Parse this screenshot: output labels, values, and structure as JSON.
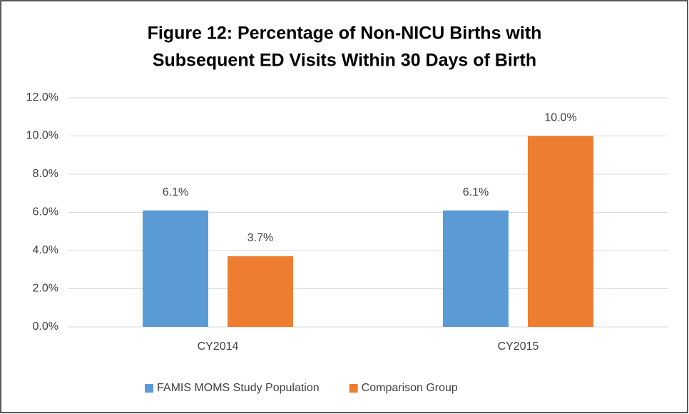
{
  "chart_data": {
    "type": "bar",
    "title": [
      "Figure 12:  Percentage of Non-NICU Births with",
      "Subsequent ED Visits Within 30 Days of Birth"
    ],
    "categories": [
      "CY2014",
      "CY2015"
    ],
    "series": [
      {
        "name": "FAMIS MOMS Study Population",
        "color": "#5b9bd5",
        "values": [
          6.1,
          6.1
        ],
        "value_labels": [
          "6.1%",
          "6.1%"
        ]
      },
      {
        "name": "Comparison Group",
        "color": "#ed7d31",
        "values": [
          3.7,
          10.0
        ],
        "value_labels": [
          "3.7%",
          "10.0%"
        ]
      }
    ],
    "ylim": [
      0,
      12
    ],
    "yticks": [
      {
        "value": 0,
        "label": "0.0%"
      },
      {
        "value": 2,
        "label": "2.0%"
      },
      {
        "value": 4,
        "label": "4.0%"
      },
      {
        "value": 6,
        "label": "6.0%"
      },
      {
        "value": 8,
        "label": "8.0%"
      },
      {
        "value": 10,
        "label": "10.0%"
      },
      {
        "value": 12,
        "label": "12.0%"
      }
    ],
    "grid": true,
    "legend": "bottom"
  }
}
